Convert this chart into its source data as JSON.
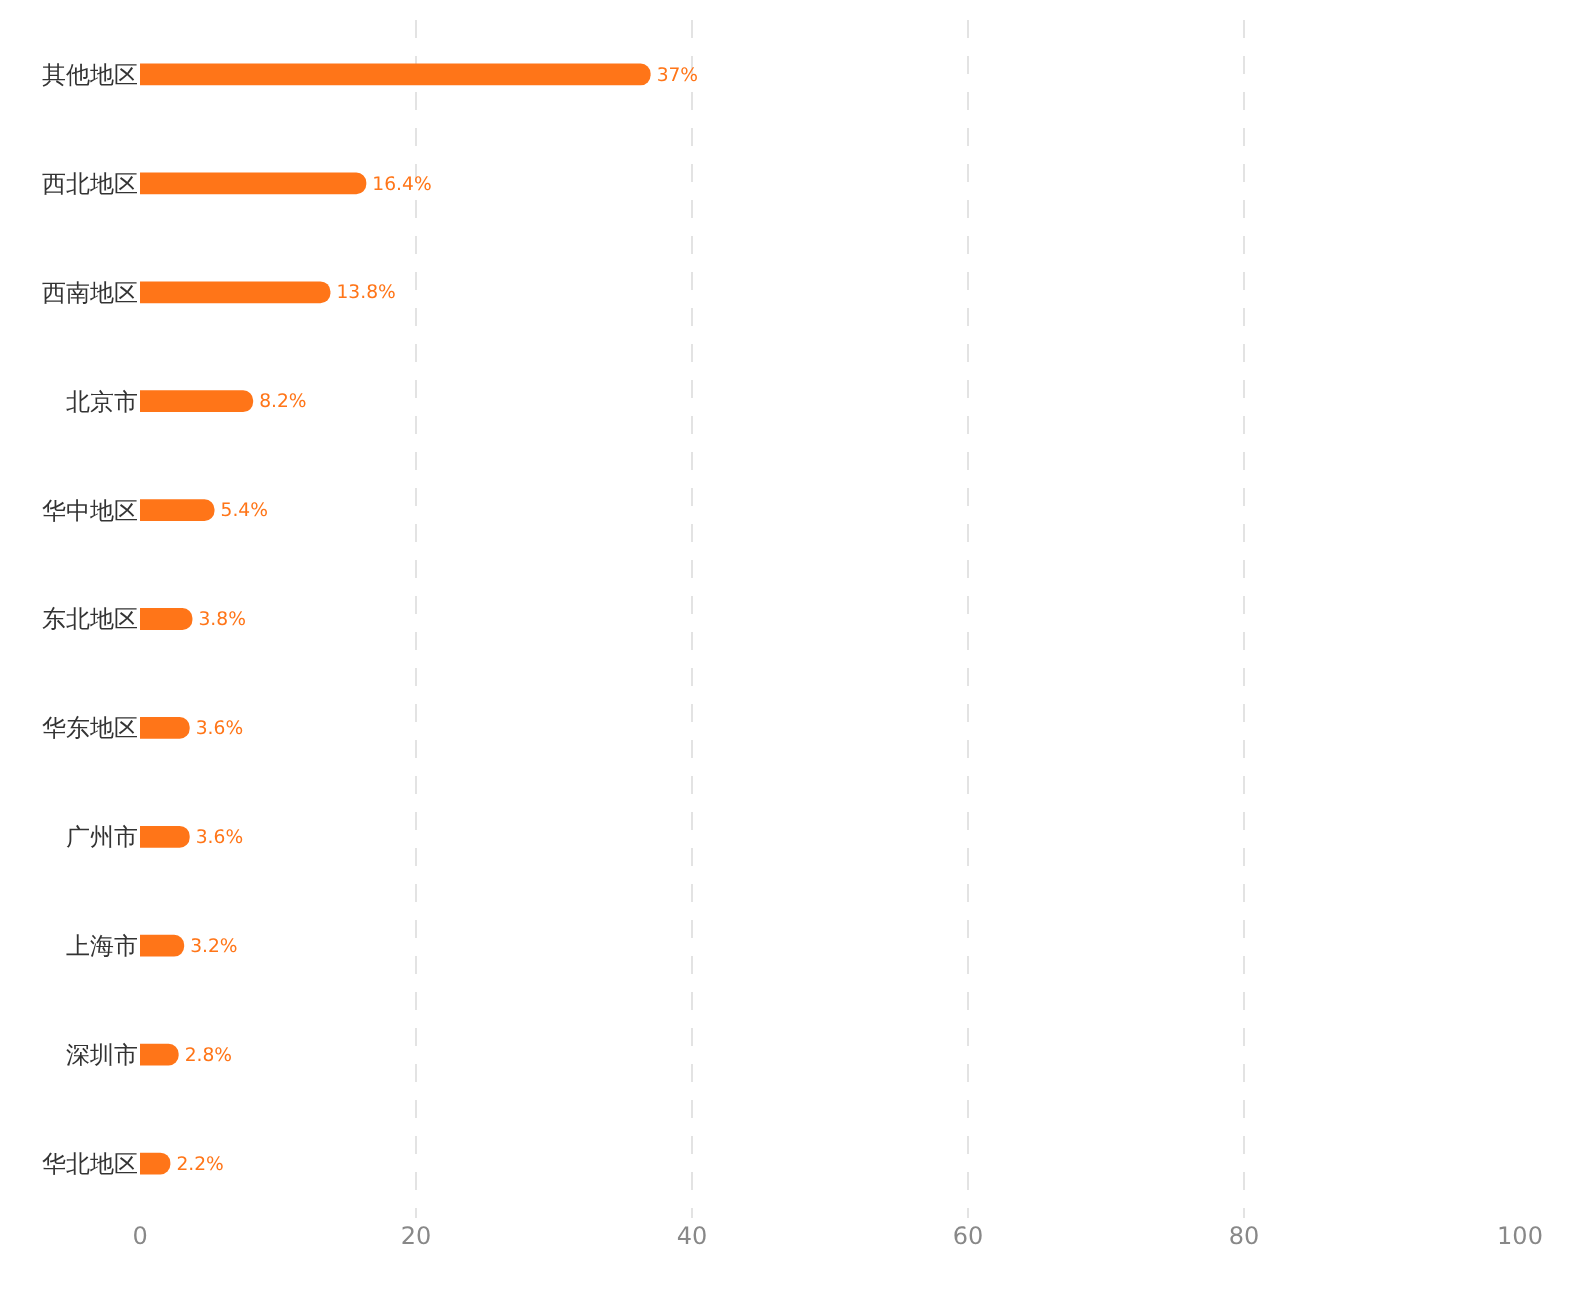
{
  "chart_data": {
    "type": "bar",
    "orientation": "horizontal",
    "categories": [
      "其他地区",
      "西北地区",
      "西南地区",
      "北京市",
      "华中地区",
      "东北地区",
      "华东地区",
      "广州市",
      "上海市",
      "深圳市",
      "华北地区"
    ],
    "values": [
      37,
      16.4,
      13.8,
      8.2,
      5.4,
      3.8,
      3.6,
      3.6,
      3.2,
      2.8,
      2.2
    ],
    "value_labels": [
      "37%",
      "16.4%",
      "13.8%",
      "8.2%",
      "5.4%",
      "3.8%",
      "3.6%",
      "3.6%",
      "3.2%",
      "2.8%",
      "2.2%"
    ],
    "color": "#ff7518",
    "xlim": [
      0,
      100
    ],
    "xticks": [
      0,
      20,
      40,
      60,
      80,
      100
    ],
    "grid": "x"
  }
}
